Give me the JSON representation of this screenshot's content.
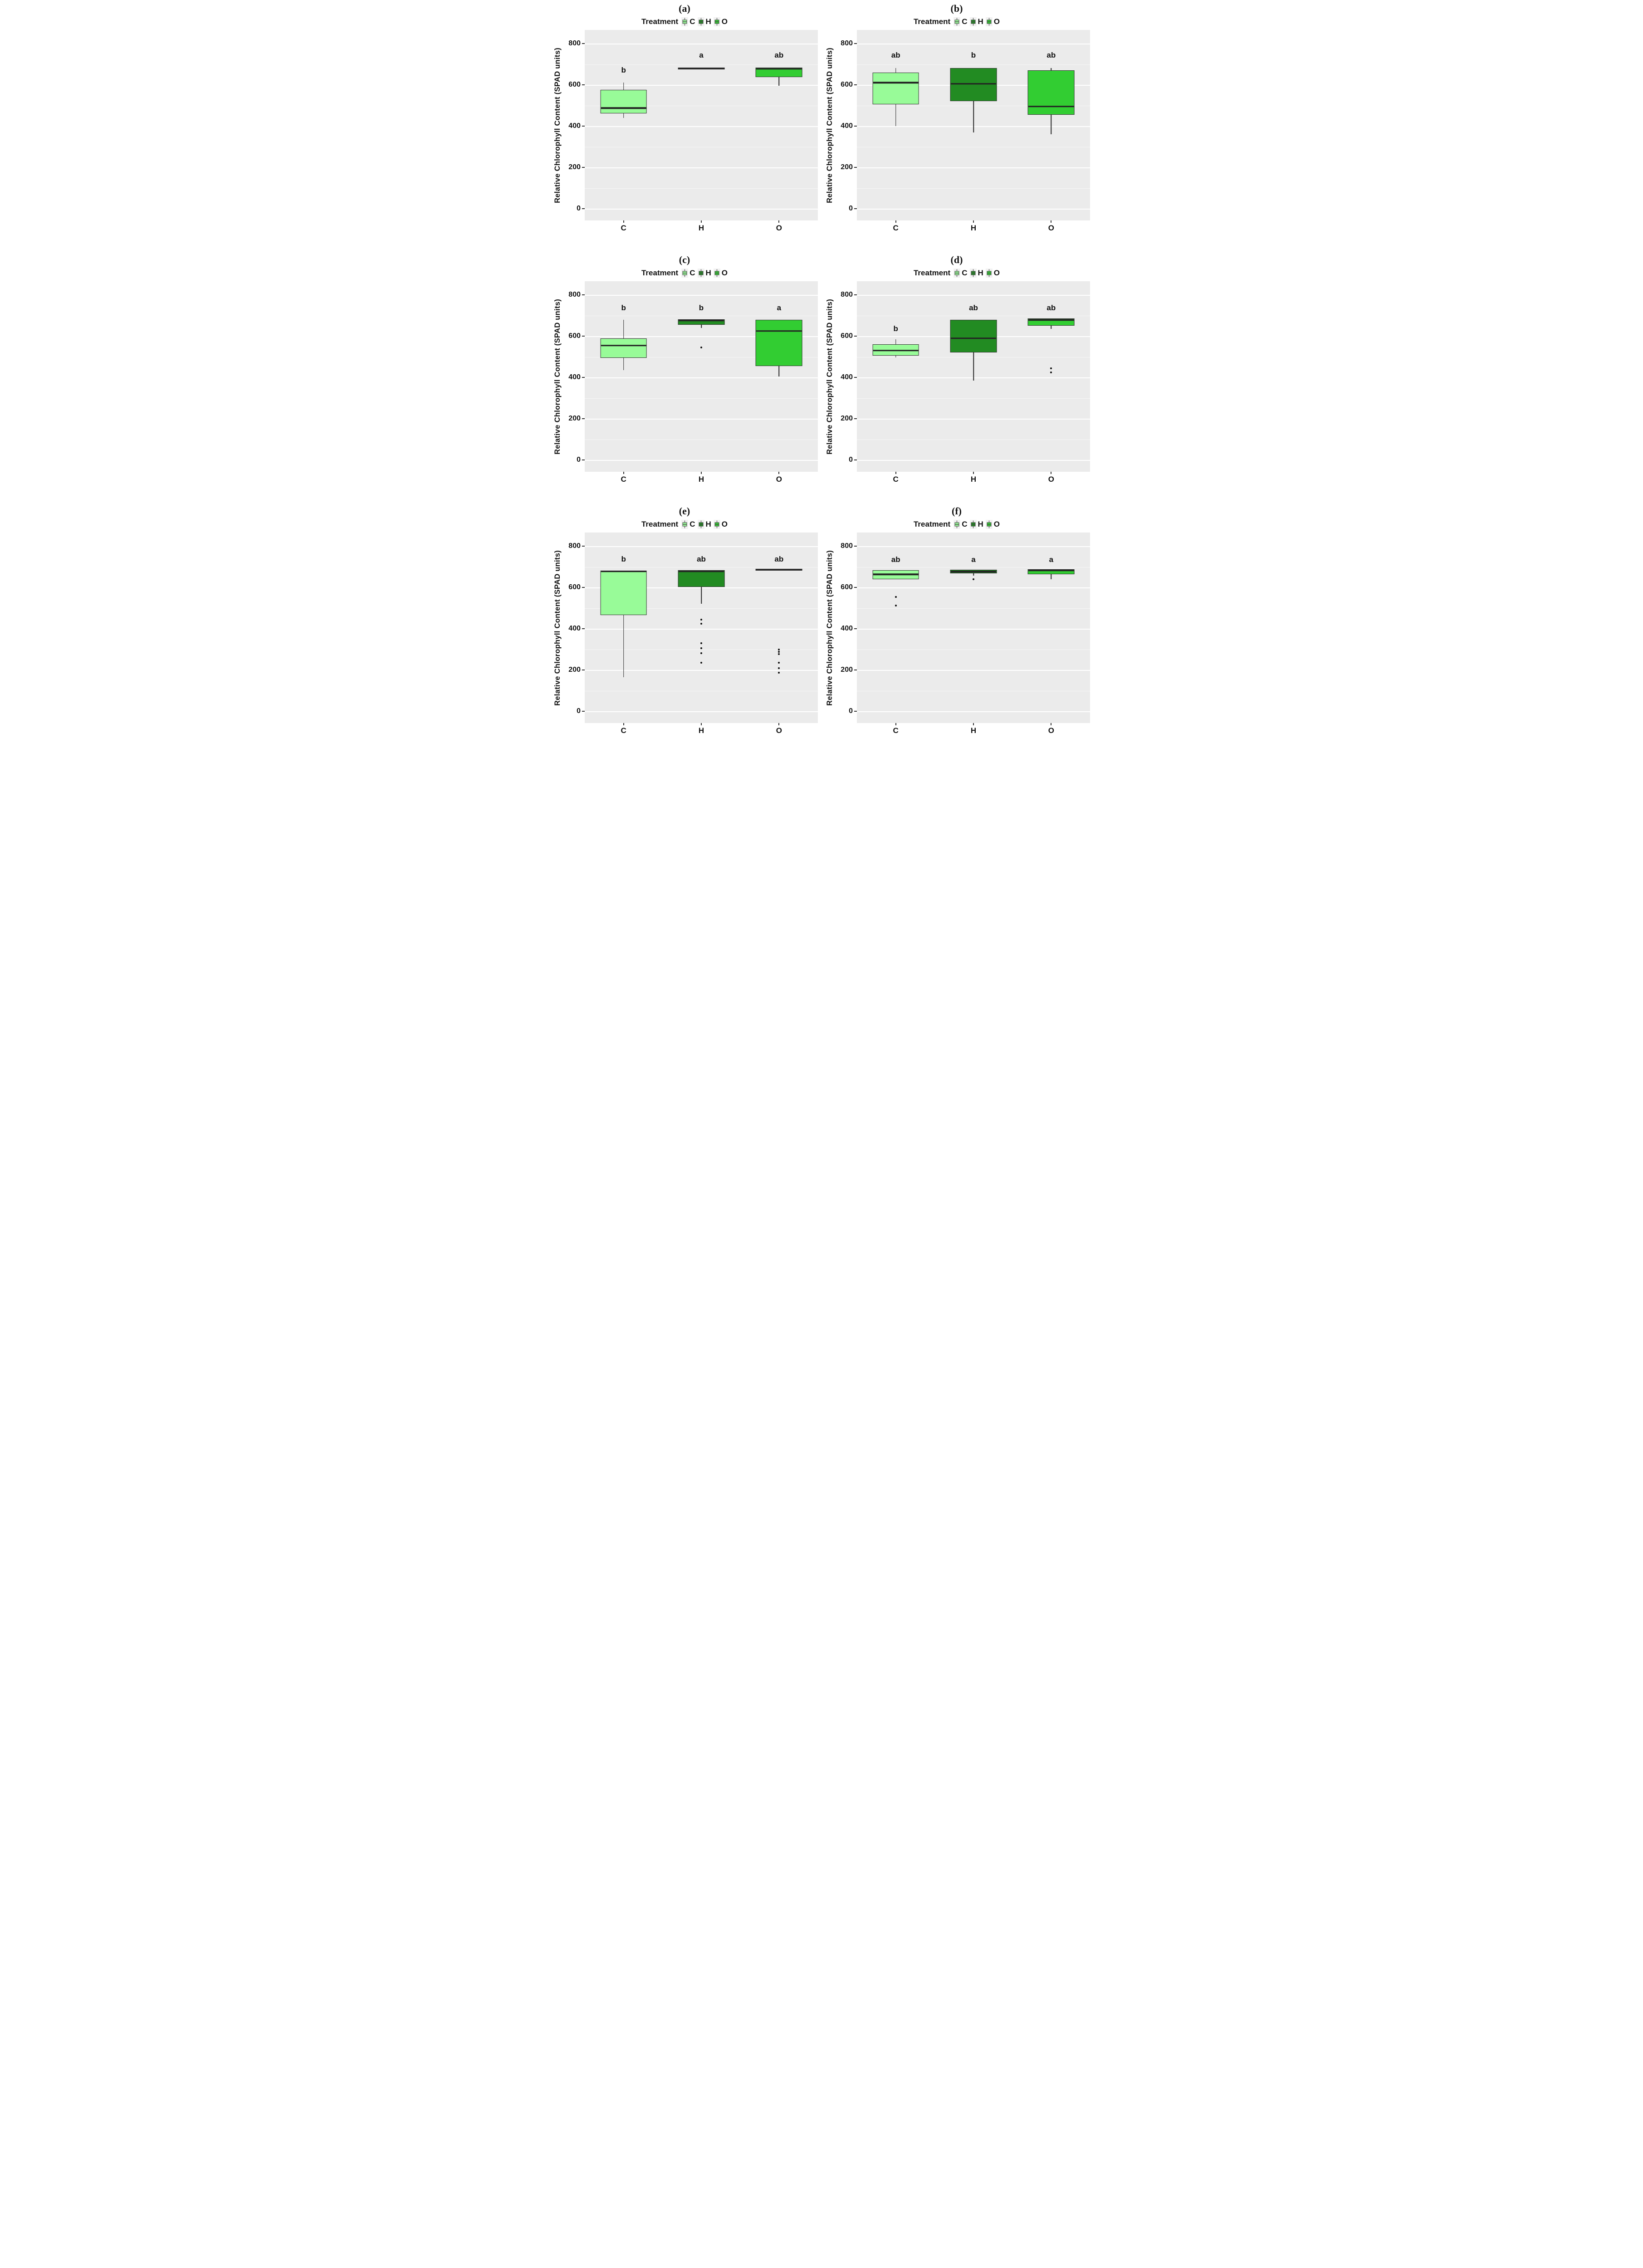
{
  "figure": {
    "ylabel": "Relative Chlorophyll Content (SPAD units)",
    "legend": {
      "title": "Treatment",
      "items": [
        {
          "label": "C",
          "color": "#98FB98"
        },
        {
          "label": "H",
          "color": "#228B22"
        },
        {
          "label": "O",
          "color": "#32CD32"
        }
      ]
    },
    "x_categories": [
      "C",
      "H",
      "O"
    ],
    "y_ticks": [
      0,
      200,
      400,
      600,
      800
    ],
    "colors": {
      "panel_background": "#EBEBEB",
      "gridline": "#FFFFFF",
      "box_border": "#333333",
      "median_line": "#222222"
    }
  },
  "chart_data": [
    {
      "type": "boxplot",
      "panel_label": "(a)",
      "legend_title": "Treatment",
      "ylabel": "Relative Chlorophyll Content (SPAD units)",
      "categories": [
        "C",
        "H",
        "O"
      ],
      "ylim": [
        0,
        800
      ],
      "groups": [
        {
          "category": "C",
          "color": "#98FB98",
          "letter": "b",
          "letter_y": 648,
          "whisker_low": 440,
          "q1": 462,
          "median": 488,
          "q3": 575,
          "whisker_high": 612,
          "outliers": []
        },
        {
          "category": "H",
          "color": "#228B22",
          "letter": "a",
          "letter_y": 722,
          "flat": true,
          "median": 680,
          "outliers": []
        },
        {
          "category": "O",
          "color": "#32CD32",
          "letter": "ab",
          "letter_y": 722,
          "whisker_low": 595,
          "q1": 638,
          "median": 678,
          "q3": 683,
          "outliers": []
        }
      ]
    },
    {
      "type": "boxplot",
      "panel_label": "(b)",
      "legend_title": "Treatment",
      "ylabel": "Relative Chlorophyll Content (SPAD units)",
      "categories": [
        "C",
        "H",
        "O"
      ],
      "ylim": [
        0,
        800
      ],
      "groups": [
        {
          "category": "C",
          "color": "#98FB98",
          "letter": "ab",
          "letter_y": 722,
          "whisker_low": 400,
          "q1": 505,
          "median": 610,
          "q3": 660,
          "whisker_high": 681,
          "outliers": []
        },
        {
          "category": "H",
          "color": "#228B22",
          "letter": "b",
          "letter_y": 722,
          "whisker_low": 370,
          "q1": 520,
          "median": 605,
          "q3": 682,
          "outliers": []
        },
        {
          "category": "O",
          "color": "#32CD32",
          "letter": "ab",
          "letter_y": 722,
          "whisker_low": 360,
          "q1": 455,
          "median": 495,
          "q3": 670,
          "whisker_high": 681,
          "outliers": []
        }
      ]
    },
    {
      "type": "boxplot",
      "panel_label": "(c)",
      "legend_title": "Treatment",
      "ylabel": "Relative Chlorophyll Content (SPAD units)",
      "categories": [
        "C",
        "H",
        "O"
      ],
      "ylim": [
        0,
        800
      ],
      "groups": [
        {
          "category": "C",
          "color": "#98FB98",
          "letter": "b",
          "letter_y": 714,
          "whisker_low": 435,
          "q1": 495,
          "median": 555,
          "q3": 590,
          "whisker_high": 680,
          "outliers": []
        },
        {
          "category": "H",
          "color": "#228B22",
          "letter": "b",
          "letter_y": 714,
          "whisker_low": 640,
          "q1": 655,
          "median": 677,
          "q3": 681,
          "outliers": [
            545
          ]
        },
        {
          "category": "O",
          "color": "#32CD32",
          "letter": "a",
          "letter_y": 714,
          "whisker_low": 405,
          "q1": 455,
          "median": 625,
          "q3": 680,
          "outliers": []
        }
      ]
    },
    {
      "type": "boxplot",
      "panel_label": "(d)",
      "legend_title": "Treatment",
      "ylabel": "Relative Chlorophyll Content (SPAD units)",
      "categories": [
        "C",
        "H",
        "O"
      ],
      "ylim": [
        0,
        800
      ],
      "groups": [
        {
          "category": "C",
          "color": "#98FB98",
          "letter": "b",
          "letter_y": 614,
          "whisker_low": 497,
          "q1": 505,
          "median": 530,
          "q3": 560,
          "whisker_high": 585,
          "outliers": []
        },
        {
          "category": "H",
          "color": "#228B22",
          "letter": "ab",
          "letter_y": 714,
          "whisker_low": 385,
          "q1": 520,
          "median": 590,
          "q3": 680,
          "outliers": []
        },
        {
          "category": "O",
          "color": "#32CD32",
          "letter": "ab",
          "letter_y": 714,
          "whisker_low": 635,
          "q1": 650,
          "median": 679,
          "q3": 685,
          "outliers": [
            443,
            424
          ]
        }
      ]
    },
    {
      "type": "boxplot",
      "panel_label": "(e)",
      "legend_title": "Treatment",
      "ylabel": "Relative Chlorophyll Content (SPAD units)",
      "categories": [
        "C",
        "H",
        "O"
      ],
      "ylim": [
        0,
        800
      ],
      "groups": [
        {
          "category": "C",
          "color": "#98FB98",
          "letter": "b",
          "letter_y": 714,
          "whisker_low": 165,
          "q1": 465,
          "median": 678,
          "q3": 682,
          "outliers": []
        },
        {
          "category": "H",
          "color": "#228B22",
          "letter": "ab",
          "letter_y": 714,
          "whisker_low": 520,
          "q1": 603,
          "median": 678,
          "q3": 683,
          "outliers": [
            445,
            424,
            330,
            305,
            282,
            235
          ]
        },
        {
          "category": "O",
          "color": "#32CD32",
          "letter": "ab",
          "letter_y": 714,
          "flat": true,
          "median": 686,
          "outliers": [
            298,
            288,
            277,
            235,
            210,
            186
          ]
        }
      ]
    },
    {
      "type": "boxplot",
      "panel_label": "(f)",
      "legend_title": "Treatment",
      "ylabel": "Relative Chlorophyll Content (SPAD units)",
      "categories": [
        "C",
        "H",
        "O"
      ],
      "ylim": [
        0,
        800
      ],
      "groups": [
        {
          "category": "C",
          "color": "#98FB98",
          "letter": "ab",
          "letter_y": 712,
          "q1": 640,
          "median": 663,
          "q3": 684,
          "outliers": [
            553,
            512
          ]
        },
        {
          "category": "H",
          "color": "#228B22",
          "letter": "a",
          "letter_y": 712,
          "whisker_low": 658,
          "q1": 668,
          "median": 676,
          "q3": 685,
          "outliers": [
            640
          ]
        },
        {
          "category": "O",
          "color": "#32CD32",
          "letter": "a",
          "letter_y": 712,
          "whisker_low": 640,
          "q1": 663,
          "median": 683,
          "q3": 689,
          "outliers": []
        }
      ]
    }
  ]
}
